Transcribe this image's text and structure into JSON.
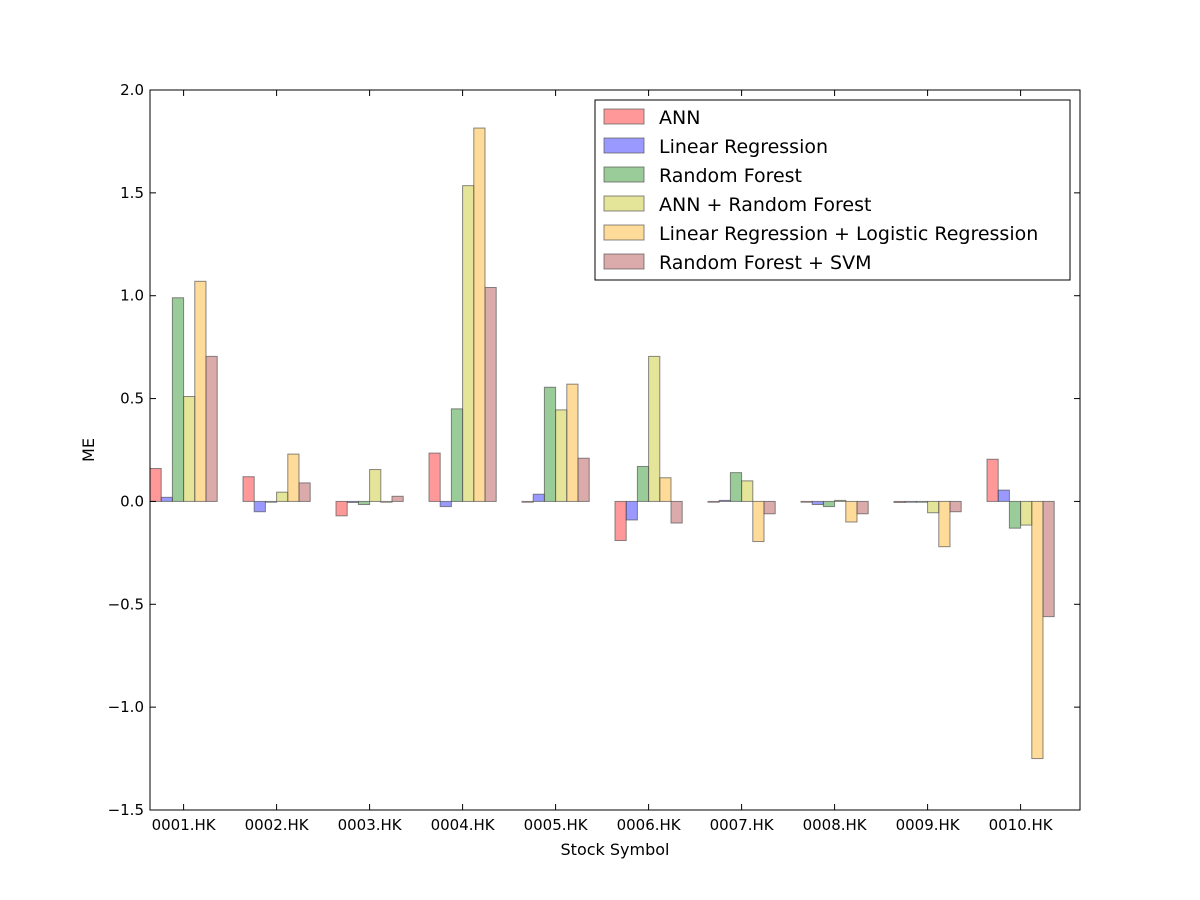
{
  "chart_data": {
    "type": "bar",
    "xlabel": "Stock Symbol",
    "ylabel": "ME",
    "ylim": [
      -1.5,
      2.0
    ],
    "yticks": [
      -1.5,
      -1.0,
      -0.5,
      0.0,
      0.5,
      1.0,
      1.5,
      2.0
    ],
    "ytick_labels": [
      "−1.5",
      "−1.0",
      "−0.5",
      "0.0",
      "0.5",
      "1.0",
      "1.5",
      "2.0"
    ],
    "categories": [
      "0001.HK",
      "0002.HK",
      "0003.HK",
      "0004.HK",
      "0005.HK",
      "0006.HK",
      "0007.HK",
      "0008.HK",
      "0009.HK",
      "0010.HK"
    ],
    "legend_position": "upper-right",
    "grid": false,
    "series": [
      {
        "name": "ANN",
        "color": "#ff0000",
        "values": [
          0.16,
          0.12,
          -0.07,
          0.235,
          0.0,
          -0.19,
          0.0,
          0.0,
          -0.005,
          0.205
        ]
      },
      {
        "name": "Linear Regression",
        "color": "#0000ff",
        "values": [
          0.02,
          -0.05,
          -0.005,
          -0.025,
          0.035,
          -0.09,
          0.005,
          -0.015,
          0.0,
          0.055
        ]
      },
      {
        "name": "Random Forest",
        "color": "#008000",
        "values": [
          0.99,
          0.0,
          -0.015,
          0.45,
          0.555,
          0.17,
          0.14,
          -0.025,
          0.0,
          -0.13
        ]
      },
      {
        "name": "ANN + Random Forest",
        "color": "#bfbf00",
        "values": [
          0.51,
          0.045,
          0.155,
          1.535,
          0.445,
          0.705,
          0.1,
          0.005,
          -0.055,
          -0.115
        ]
      },
      {
        "name": "Linear Regression + Logistic Regression",
        "color": "#ffa500",
        "values": [
          1.07,
          0.23,
          0.0,
          1.815,
          0.57,
          0.115,
          -0.195,
          -0.1,
          -0.22,
          -1.25
        ]
      },
      {
        "name": "Random Forest + SVM",
        "color": "#a52a2a",
        "values": [
          0.705,
          0.09,
          0.025,
          1.04,
          0.21,
          -0.105,
          -0.06,
          -0.06,
          -0.05,
          -0.56
        ]
      }
    ]
  }
}
